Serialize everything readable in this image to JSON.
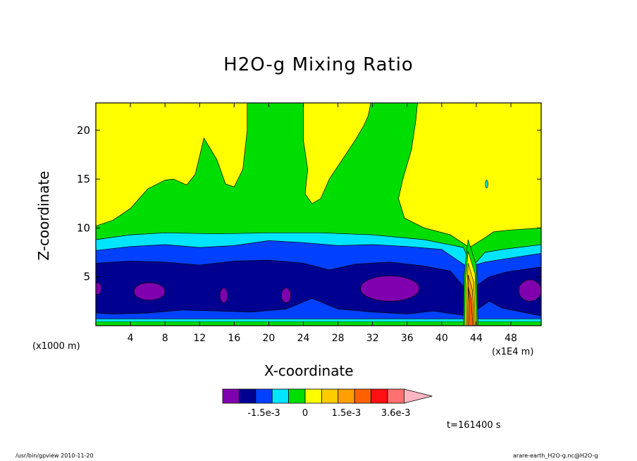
{
  "chart_data": {
    "type": "heatmap",
    "title": "H2O-g Mixing Ratio",
    "xlabel": "X-coordinate",
    "ylabel": "Z-coordinate",
    "x_unit_left": "(x1000 m)",
    "x_unit_right": "(x1E4 m)",
    "x_ticks": [
      4,
      8,
      12,
      16,
      20,
      24,
      28,
      32,
      36,
      40,
      44,
      48
    ],
    "y_ticks": [
      5,
      10,
      15,
      20
    ],
    "xlim": [
      0,
      51.5
    ],
    "ylim": [
      0,
      22.8
    ],
    "time_label": "t=161400 s",
    "colorbar": {
      "labels": [
        "-1.5e-3",
        "0",
        "1.5e-3",
        "3.6e-3"
      ],
      "colors": [
        "#8000b0",
        "#000090",
        "#0040ff",
        "#00e5ff",
        "#00dd00",
        "#ffff00",
        "#ffcc00",
        "#ffa000",
        "#ff6000",
        "#ff1010",
        "#ff7070",
        "#ffb6c1"
      ]
    },
    "regions": {
      "green_upper": {
        "color": "#00dd00",
        "outline": [
          [
            0,
            10.2
          ],
          [
            2,
            10.8
          ],
          [
            4,
            12
          ],
          [
            6,
            14
          ],
          [
            8,
            14.9
          ],
          [
            9,
            15
          ],
          [
            10.5,
            14.4
          ],
          [
            11.5,
            15.5
          ],
          [
            12.5,
            19.2
          ],
          [
            14,
            17
          ],
          [
            15,
            14.5
          ],
          [
            16,
            14.2
          ],
          [
            17,
            16
          ],
          [
            17.5,
            20
          ],
          [
            17.5,
            22.8
          ],
          [
            24,
            22.8
          ],
          [
            24,
            19
          ],
          [
            24.5,
            16
          ],
          [
            24.2,
            13.5
          ],
          [
            25,
            12.5
          ],
          [
            26,
            13
          ],
          [
            27,
            15
          ],
          [
            28.5,
            17
          ],
          [
            30,
            19
          ],
          [
            31,
            20.5
          ],
          [
            31.5,
            21.5
          ],
          [
            31.8,
            22.8
          ],
          [
            37.2,
            22.8
          ],
          [
            37,
            21
          ],
          [
            36.5,
            18
          ],
          [
            35.5,
            15
          ],
          [
            35,
            13
          ],
          [
            35.7,
            11
          ],
          [
            38,
            10
          ],
          [
            41,
            9.3
          ],
          [
            43.2,
            8
          ],
          [
            45,
            9
          ],
          [
            46,
            9.6
          ],
          [
            48,
            9.8
          ],
          [
            51.5,
            10
          ],
          [
            51.5,
            0
          ],
          [
            0,
            0
          ]
        ]
      },
      "cyan_band": {
        "color": "#00e5ff",
        "outline": [
          [
            0,
            8.8
          ],
          [
            4,
            9.3
          ],
          [
            8,
            9.5
          ],
          [
            14,
            9.4
          ],
          [
            20,
            9.5
          ],
          [
            26,
            9.5
          ],
          [
            32,
            9.3
          ],
          [
            38,
            8.8
          ],
          [
            42.5,
            8
          ],
          [
            43.5,
            6
          ],
          [
            45,
            7.5
          ],
          [
            47,
            7.8
          ],
          [
            51.5,
            8.3
          ],
          [
            51.5,
            0
          ],
          [
            0,
            0
          ]
        ]
      },
      "blue_band": {
        "color": "#0040ff",
        "outline": [
          [
            0,
            7.7
          ],
          [
            4,
            8.1
          ],
          [
            8,
            8.3
          ],
          [
            12,
            8.0
          ],
          [
            16,
            8.2
          ],
          [
            20,
            8.7
          ],
          [
            24,
            8.5
          ],
          [
            28,
            8.2
          ],
          [
            32,
            8.3
          ],
          [
            36,
            8.1
          ],
          [
            40,
            7.8
          ],
          [
            43,
            6
          ],
          [
            45,
            6.5
          ],
          [
            47,
            6.8
          ],
          [
            51.5,
            7.4
          ],
          [
            51.5,
            0
          ],
          [
            0,
            0
          ]
        ]
      },
      "navy_band": {
        "color": "#000090",
        "outline": [
          [
            0,
            6.4
          ],
          [
            4,
            6.6
          ],
          [
            8,
            6.5
          ],
          [
            12,
            6.2
          ],
          [
            16,
            6.6
          ],
          [
            20,
            6.7
          ],
          [
            24,
            6.4
          ],
          [
            27,
            5.7
          ],
          [
            30,
            6.3
          ],
          [
            34,
            6.5
          ],
          [
            38,
            6.1
          ],
          [
            41,
            5.6
          ],
          [
            43,
            3.5
          ],
          [
            45.5,
            5
          ],
          [
            47.5,
            5.5
          ],
          [
            51.5,
            6
          ],
          [
            51.5,
            1
          ],
          [
            47,
            1.8
          ],
          [
            45.5,
            2.5
          ],
          [
            43,
            1
          ],
          [
            39,
            1.5
          ],
          [
            36,
            1.2
          ],
          [
            32,
            1.4
          ],
          [
            28,
            1.7
          ],
          [
            25,
            2.8
          ],
          [
            22,
            1.7
          ],
          [
            18,
            1.4
          ],
          [
            14,
            1.5
          ],
          [
            10,
            1.6
          ],
          [
            6,
            1.3
          ],
          [
            2,
            1.2
          ],
          [
            0,
            1.3
          ]
        ]
      },
      "blue_low": {
        "color": "#0040ff",
        "outline": [
          [
            0,
            1.3
          ],
          [
            2,
            1.2
          ],
          [
            6,
            1.3
          ],
          [
            10,
            1.6
          ],
          [
            14,
            1.5
          ],
          [
            18,
            1.4
          ],
          [
            22,
            1.7
          ],
          [
            25,
            2.8
          ],
          [
            28,
            1.7
          ],
          [
            32,
            1.4
          ],
          [
            36,
            1.2
          ],
          [
            39,
            1.5
          ],
          [
            43,
            1
          ],
          [
            45.5,
            2.5
          ],
          [
            47,
            1.8
          ],
          [
            51.5,
            1
          ],
          [
            51.5,
            0.7
          ],
          [
            0,
            0.7
          ]
        ]
      },
      "cyan_low": {
        "color": "#00e5ff",
        "outline": [
          [
            0,
            0.7
          ],
          [
            51.5,
            0.7
          ],
          [
            51.5,
            0.4
          ],
          [
            0,
            0.4
          ]
        ]
      }
    },
    "ellipses": [
      {
        "center": [
          6.2,
          3.5
        ],
        "radius": [
          1.8,
          0.9
        ]
      },
      {
        "center": [
          14.8,
          3.1
        ],
        "radius": [
          0.45,
          0.75
        ]
      },
      {
        "center": [
          22.0,
          3.1
        ],
        "radius": [
          0.55,
          0.75
        ]
      },
      {
        "center": [
          34.0,
          3.8
        ],
        "radius": [
          3.4,
          1.3
        ]
      },
      {
        "center": [
          0.2,
          3.8
        ],
        "radius": [
          0.45,
          0.6
        ]
      },
      {
        "center": [
          50.2,
          3.6
        ],
        "radius": [
          1.3,
          1.1
        ]
      }
    ],
    "plume": {
      "x_range": [
        42.5,
        44.2
      ],
      "top": 8.8
    },
    "small_feature": {
      "center": [
        45.2,
        14.5
      ],
      "radius": [
        0.15,
        0.4
      ]
    }
  },
  "footer": {
    "left": "/usr/bin/gpview   2010-11-20",
    "right": "arare-earth_H2O-g.nc@H2O-g"
  }
}
